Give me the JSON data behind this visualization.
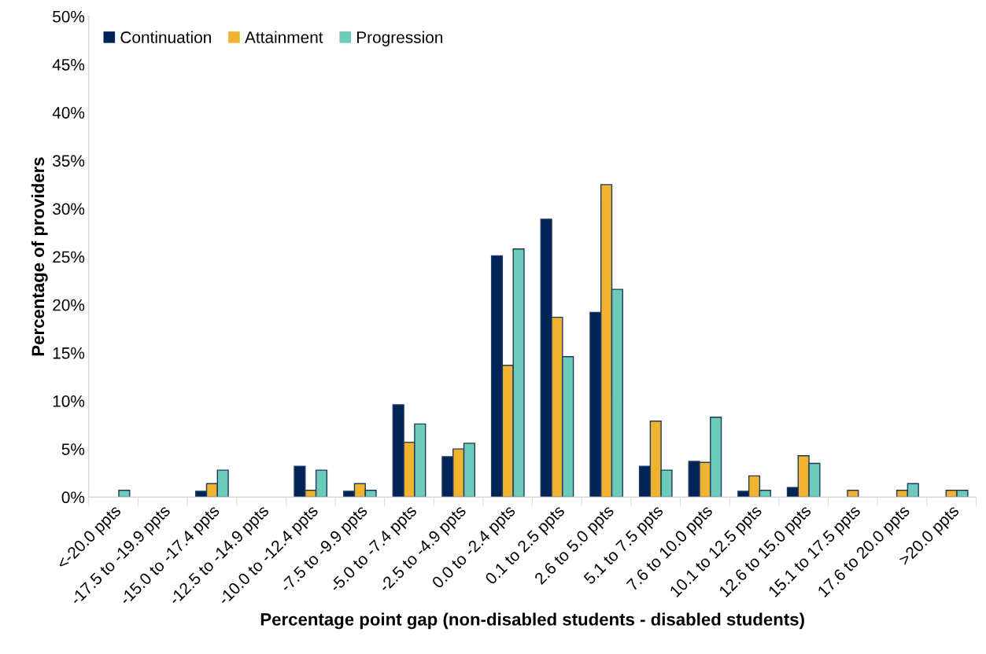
{
  "chart_data": {
    "type": "bar",
    "xlabel": "Percentage point gap (non-disabled students - disabled students)",
    "ylabel": "Percentage of providers",
    "categories": [
      "<-20.0 ppts",
      "-17.5 to -19.9 ppts",
      "-15.0 to -17.4 ppts",
      "-12.5 to -14.9 ppts",
      "-10.0 to -12.4 ppts",
      "-7.5 to -9.9 ppts",
      "-5.0 to -7.4 ppts",
      "-2.5 to -4.9 ppts",
      "0.0 to -2.4 ppts",
      "0.1 to 2.5 ppts",
      "2.6 to 5.0 ppts",
      "5.1 to 7.5 ppts",
      "7.6 to 10.0 ppts",
      "10.1 to 12.5 ppts",
      "12.6 to 15.0 ppts",
      "15.1 to 17.5 ppts",
      "17.6 to 20.0 ppts",
      ">20.0 ppts"
    ],
    "series": [
      {
        "name": "Continuation",
        "color": "#002456",
        "values": [
          0,
          0,
          0.6,
          0,
          3.2,
          0.6,
          9.6,
          4.2,
          25.1,
          28.9,
          19.2,
          3.2,
          3.7,
          0.6,
          1.0,
          0,
          0,
          0
        ]
      },
      {
        "name": "Attainment",
        "color": "#f0b331",
        "values": [
          0,
          0,
          1.4,
          0,
          0.7,
          1.4,
          5.7,
          5.0,
          13.7,
          18.7,
          32.5,
          7.9,
          3.6,
          2.2,
          4.3,
          0.7,
          0.7,
          0.7
        ]
      },
      {
        "name": "Progression",
        "color": "#6ccbb9",
        "values": [
          0.7,
          0,
          2.8,
          0,
          2.8,
          0.7,
          7.6,
          5.6,
          25.8,
          14.6,
          21.6,
          2.8,
          8.3,
          0.7,
          3.5,
          0,
          1.4,
          0.7
        ]
      }
    ],
    "ylim": [
      0,
      50
    ],
    "yticks": [
      {
        "value": 0,
        "label": "0%"
      },
      {
        "value": 5,
        "label": "5%"
      },
      {
        "value": 10,
        "label": "10%"
      },
      {
        "value": 15,
        "label": "15%"
      },
      {
        "value": 20,
        "label": "20%"
      },
      {
        "value": 25,
        "label": "25%"
      },
      {
        "value": 30,
        "label": "30%"
      },
      {
        "value": 35,
        "label": "35%"
      },
      {
        "value": 40,
        "label": "40%"
      },
      {
        "value": 45,
        "label": "45%"
      },
      {
        "value": 50,
        "label": "50%"
      }
    ],
    "grid": false,
    "legend": "top left"
  }
}
